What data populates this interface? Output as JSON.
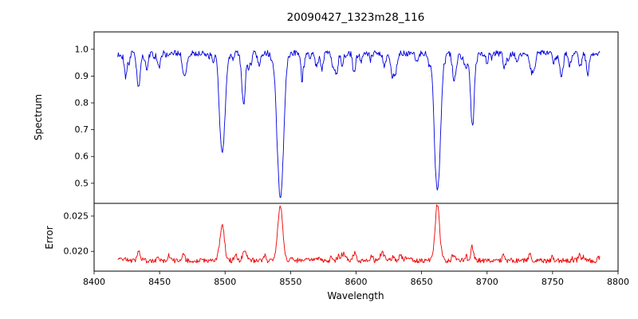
{
  "chart_data": {
    "type": "line",
    "title": "20090427_1323m28_116",
    "xlabel": "Wavelength",
    "legend": null,
    "grid": false,
    "seed": 20090427,
    "sample_step": 0.5,
    "xlim": [
      8400,
      8800
    ],
    "x_range": [
      8418,
      8786
    ],
    "x_ticks": [
      8400,
      8450,
      8500,
      8550,
      8600,
      8650,
      8700,
      8750,
      8800
    ],
    "x_tick_labels": [
      "8400",
      "8450",
      "8500",
      "8550",
      "8600",
      "8650",
      "8700",
      "8750",
      "8800"
    ],
    "panels": [
      {
        "name": "spectrum",
        "ylabel": "Spectrum",
        "color": "#0000dd",
        "ylim": [
          0.425,
          1.065
        ],
        "y_ticks": [
          1.0,
          0.9,
          0.8,
          0.7,
          0.6,
          0.5
        ],
        "y_tick_labels": [
          "1.0",
          "0.9",
          "0.8",
          "0.7",
          "0.6",
          "0.5"
        ],
        "continuum": 0.985,
        "noise_amplitude": 0.011,
        "weak_lines": {
          "count": 80,
          "min_depth": 0.008,
          "max_depth": 0.05
        },
        "absorption_lines": [
          {
            "center": 8424.2,
            "depth": 0.09,
            "width": 1.1
          },
          {
            "center": 8434.0,
            "depth": 0.13,
            "width": 1.2
          },
          {
            "center": 8468.4,
            "depth": 0.07,
            "width": 1.1
          },
          {
            "center": 8498.0,
            "depth": 0.37,
            "width": 2.0
          },
          {
            "center": 8514.1,
            "depth": 0.11,
            "width": 1.3
          },
          {
            "center": 8542.1,
            "depth": 0.54,
            "width": 2.4
          },
          {
            "center": 8582.3,
            "depth": 0.05,
            "width": 1.1
          },
          {
            "center": 8598.8,
            "depth": 0.06,
            "width": 1.1
          },
          {
            "center": 8621.6,
            "depth": 0.05,
            "width": 1.1
          },
          {
            "center": 8662.1,
            "depth": 0.51,
            "width": 2.2
          },
          {
            "center": 8674.8,
            "depth": 0.1,
            "width": 1.2
          },
          {
            "center": 8688.6,
            "depth": 0.24,
            "width": 1.4
          },
          {
            "center": 8713.2,
            "depth": 0.05,
            "width": 1.0
          },
          {
            "center": 8736.0,
            "depth": 0.04,
            "width": 1.0
          },
          {
            "center": 8757.0,
            "depth": 0.04,
            "width": 1.0
          }
        ]
      },
      {
        "name": "error",
        "ylabel": "Error",
        "color": "#ee0000",
        "ylim": [
          0.0172,
          0.0268
        ],
        "y_ticks": [
          0.025,
          0.02
        ],
        "y_tick_labels": [
          "0.025",
          "0.020"
        ],
        "baseline": 0.0187,
        "noise_amplitude": 0.00035,
        "weak_lines": {
          "count": 40,
          "min_depth": 0.0002,
          "max_depth": 0.0009
        },
        "peaks": [
          {
            "center": 8434.0,
            "height": 0.0016,
            "width": 1.1
          },
          {
            "center": 8468.4,
            "height": 0.0007,
            "width": 1.0
          },
          {
            "center": 8498.0,
            "height": 0.005,
            "width": 1.5
          },
          {
            "center": 8514.1,
            "height": 0.0009,
            "width": 1.1
          },
          {
            "center": 8542.1,
            "height": 0.0078,
            "width": 1.9
          },
          {
            "center": 8662.1,
            "height": 0.0076,
            "width": 1.7
          },
          {
            "center": 8674.8,
            "height": 0.0007,
            "width": 1.0
          },
          {
            "center": 8688.6,
            "height": 0.002,
            "width": 1.1
          }
        ]
      }
    ]
  }
}
